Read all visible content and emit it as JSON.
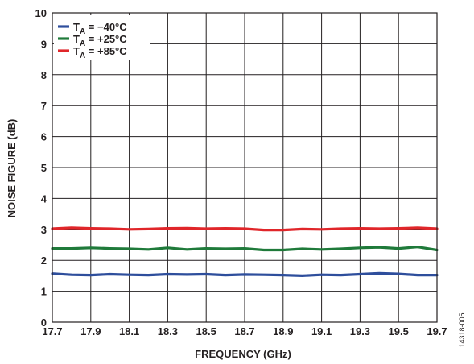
{
  "chart_data": {
    "type": "line",
    "xlabel": "FREQUENCY (GHz)",
    "ylabel": "NOISE FIGURE (dB)",
    "xlim": [
      17.7,
      19.7
    ],
    "ylim": [
      0,
      10
    ],
    "xticks": [
      "17.7",
      "17.9",
      "18.1",
      "18.3",
      "18.5",
      "18.7",
      "18.9",
      "19.1",
      "19.3",
      "19.5",
      "19.7"
    ],
    "yticks": [
      "0",
      "1",
      "2",
      "3",
      "4",
      "5",
      "6",
      "7",
      "8",
      "9",
      "10"
    ],
    "grid": true,
    "legend_position": "top-left",
    "figure_id": "14318-005",
    "series": [
      {
        "name": "T_A = −40°C",
        "legend_parts": [
          "T",
          "A",
          " = −40°C"
        ],
        "color": "#2e4e9c",
        "x": [
          17.7,
          17.8,
          17.9,
          18.0,
          18.1,
          18.2,
          18.3,
          18.4,
          18.5,
          18.6,
          18.7,
          18.8,
          18.9,
          19.0,
          19.1,
          19.2,
          19.3,
          19.4,
          19.5,
          19.6,
          19.7
        ],
        "y": [
          1.57,
          1.53,
          1.52,
          1.55,
          1.53,
          1.52,
          1.55,
          1.54,
          1.55,
          1.52,
          1.54,
          1.53,
          1.52,
          1.5,
          1.53,
          1.52,
          1.55,
          1.58,
          1.56,
          1.52,
          1.52
        ]
      },
      {
        "name": "T_A = +25°C",
        "legend_parts": [
          "T",
          "A",
          " = +25°C"
        ],
        "color": "#1f7a3a",
        "x": [
          17.7,
          17.8,
          17.9,
          18.0,
          18.1,
          18.2,
          18.3,
          18.4,
          18.5,
          18.6,
          18.7,
          18.8,
          18.9,
          19.0,
          19.1,
          19.2,
          19.3,
          19.4,
          19.5,
          19.6,
          19.7
        ],
        "y": [
          2.38,
          2.38,
          2.4,
          2.38,
          2.37,
          2.35,
          2.4,
          2.35,
          2.38,
          2.37,
          2.38,
          2.33,
          2.33,
          2.37,
          2.35,
          2.37,
          2.4,
          2.42,
          2.38,
          2.43,
          2.33
        ]
      },
      {
        "name": "T_A = +85°C",
        "legend_parts": [
          "T",
          "A",
          " = +85°C"
        ],
        "color": "#e0262a",
        "x": [
          17.7,
          17.8,
          17.9,
          18.0,
          18.1,
          18.2,
          18.3,
          18.4,
          18.5,
          18.6,
          18.7,
          18.8,
          18.9,
          19.0,
          19.1,
          19.2,
          19.3,
          19.4,
          19.5,
          19.6,
          19.7
        ],
        "y": [
          3.02,
          3.05,
          3.03,
          3.02,
          3.0,
          3.01,
          3.03,
          3.04,
          3.02,
          3.03,
          3.02,
          2.98,
          2.98,
          3.01,
          3.0,
          3.02,
          3.03,
          3.02,
          3.03,
          3.05,
          3.02
        ]
      }
    ]
  }
}
